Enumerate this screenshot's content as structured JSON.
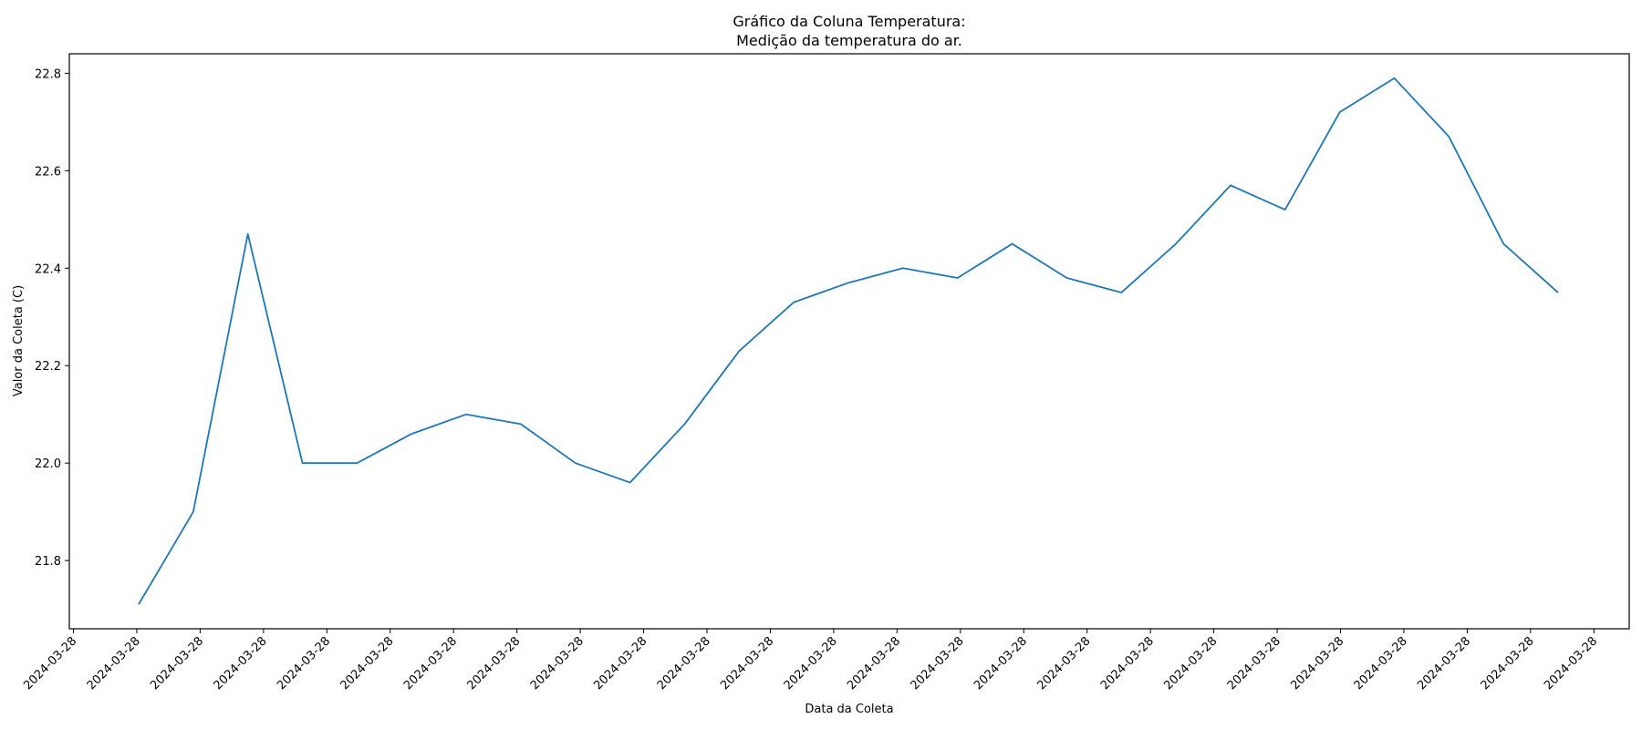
{
  "chart_data": {
    "type": "line",
    "title_line1": "Gráfico da Coluna Temperatura:",
    "title_line2": "Medição da temperatura do ar.",
    "xlabel": "Data da Coleta",
    "ylabel": "Valor da Coleta (C)",
    "ylim": [
      21.66,
      22.84
    ],
    "yticks": [
      21.8,
      22.0,
      22.2,
      22.4,
      22.6,
      22.8
    ],
    "ytick_labels": [
      "21.8",
      "22.0",
      "22.2",
      "22.4",
      "22.6",
      "22.8"
    ],
    "xtick_labels": [
      "2024-03-28",
      "2024-03-28",
      "2024-03-28",
      "2024-03-28",
      "2024-03-28",
      "2024-03-28",
      "2024-03-28",
      "2024-03-28",
      "2024-03-28",
      "2024-03-28",
      "2024-03-28",
      "2024-03-28",
      "2024-03-28",
      "2024-03-28",
      "2024-03-28",
      "2024-03-28",
      "2024-03-28",
      "2024-03-28",
      "2024-03-28",
      "2024-03-28",
      "2024-03-28",
      "2024-03-28",
      "2024-03-28",
      "2024-03-28",
      "2024-03-28"
    ],
    "grid": false,
    "colors": {
      "line": "#1f77b4",
      "axis": "#000000"
    },
    "series": [
      {
        "values": [
          21.71,
          21.9,
          22.47,
          22.0,
          22.0,
          22.06,
          22.1,
          22.08,
          22.0,
          21.96,
          22.08,
          22.23,
          22.33,
          22.37,
          22.4,
          22.38,
          22.45,
          22.38,
          22.35,
          22.45,
          22.57,
          22.52,
          22.72,
          22.79,
          22.67,
          22.45,
          22.35
        ]
      }
    ]
  }
}
